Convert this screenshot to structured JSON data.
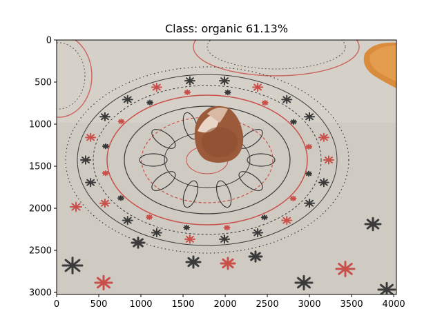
{
  "title": "Class: organic 61.13%",
  "image_description_free": true,
  "axes": {
    "x_ticks": [
      0,
      500,
      1000,
      1500,
      2000,
      2500,
      3000,
      3500,
      4000
    ],
    "y_ticks": [
      0,
      500,
      1000,
      1500,
      2000,
      2500,
      3000
    ],
    "x_range": [
      0,
      4032
    ],
    "y_range": [
      3024,
      0
    ]
  },
  "colors": {
    "tablecloth": "#cfcac2",
    "pattern_dark": "#3a3a3a",
    "pattern_red": "#c9504a",
    "shell": "#9b5a3a",
    "shell_inner": "#e9d6c6",
    "bread": "#d98c3c"
  }
}
